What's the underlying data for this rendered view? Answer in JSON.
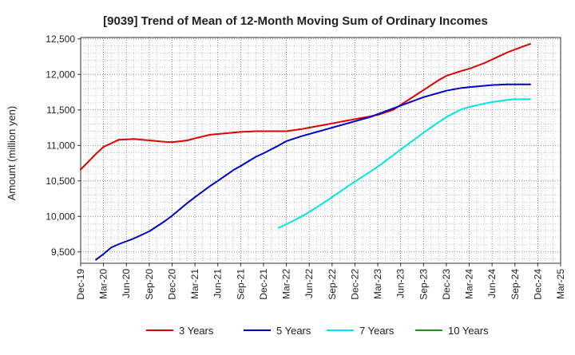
{
  "chart_data": {
    "type": "line",
    "title": "[9039]  Trend of Mean of 12-Month Moving Sum of Ordinary Incomes",
    "ylabel": "Amount (million yen)",
    "xlabel": "",
    "ylim": [
      9340,
      12520
    ],
    "yticks": [
      9500,
      10000,
      10500,
      11000,
      11500,
      12000,
      12500
    ],
    "ytick_labels": [
      "9,500",
      "10,000",
      "10,500",
      "11,000",
      "11,500",
      "12,000",
      "12,500"
    ],
    "x_tick_labels": [
      "Dec-19",
      "Mar-20",
      "Jun-20",
      "Sep-20",
      "Dec-20",
      "Mar-21",
      "Jun-21",
      "Sep-21",
      "Dec-21",
      "Mar-22",
      "Jun-22",
      "Sep-22",
      "Dec-22",
      "Mar-23",
      "Jun-23",
      "Sep-23",
      "Dec-23",
      "Mar-24",
      "Jun-24",
      "Sep-24",
      "Dec-24",
      "Mar-25"
    ],
    "x_unit": "quarter index from Dec-19 (0) to Mar-25 (21)",
    "grid": true,
    "legend_position": "bottom",
    "series": [
      {
        "name": "3 Years",
        "color": "#dd0000",
        "points": [
          [
            0,
            10660
          ],
          [
            0.67,
            10880
          ],
          [
            1,
            10980
          ],
          [
            1.67,
            11080
          ],
          [
            2.33,
            11090
          ],
          [
            3,
            11070
          ],
          [
            3.67,
            11050
          ],
          [
            4,
            11045
          ],
          [
            4.67,
            11070
          ],
          [
            5,
            11100
          ],
          [
            5.67,
            11150
          ],
          [
            6,
            11160
          ],
          [
            6.67,
            11180
          ],
          [
            7,
            11190
          ],
          [
            7.67,
            11200
          ],
          [
            8,
            11200
          ],
          [
            8.67,
            11200
          ],
          [
            9,
            11200
          ],
          [
            9.67,
            11230
          ],
          [
            10,
            11250
          ],
          [
            10.67,
            11290
          ],
          [
            11,
            11310
          ],
          [
            11.67,
            11350
          ],
          [
            12,
            11370
          ],
          [
            12.67,
            11410
          ],
          [
            13,
            11430
          ],
          [
            13.67,
            11500
          ],
          [
            14,
            11570
          ],
          [
            14.67,
            11710
          ],
          [
            15,
            11780
          ],
          [
            15.67,
            11920
          ],
          [
            16,
            11980
          ],
          [
            16.67,
            12050
          ],
          [
            17,
            12080
          ],
          [
            17.67,
            12160
          ],
          [
            18,
            12210
          ],
          [
            18.67,
            12310
          ],
          [
            19,
            12350
          ],
          [
            19.67,
            12430
          ]
        ]
      },
      {
        "name": "5 Years",
        "color": "#0000cc",
        "points": [
          [
            0.67,
            9390
          ],
          [
            1,
            9470
          ],
          [
            1.33,
            9560
          ],
          [
            1.67,
            9610
          ],
          [
            2.33,
            9690
          ],
          [
            3,
            9790
          ],
          [
            3.67,
            9930
          ],
          [
            4,
            10010
          ],
          [
            4.67,
            10190
          ],
          [
            5,
            10270
          ],
          [
            5.67,
            10430
          ],
          [
            6,
            10500
          ],
          [
            6.67,
            10650
          ],
          [
            7,
            10710
          ],
          [
            7.67,
            10840
          ],
          [
            8,
            10890
          ],
          [
            8.67,
            11000
          ],
          [
            9,
            11060
          ],
          [
            9.67,
            11130
          ],
          [
            10,
            11160
          ],
          [
            10.67,
            11220
          ],
          [
            11,
            11250
          ],
          [
            11.67,
            11310
          ],
          [
            12,
            11340
          ],
          [
            12.67,
            11400
          ],
          [
            13,
            11440
          ],
          [
            13.67,
            11520
          ],
          [
            14,
            11560
          ],
          [
            14.67,
            11640
          ],
          [
            15,
            11680
          ],
          [
            15.67,
            11740
          ],
          [
            16,
            11770
          ],
          [
            16.67,
            11810
          ],
          [
            17,
            11820
          ],
          [
            17.67,
            11840
          ],
          [
            18,
            11850
          ],
          [
            18.67,
            11860
          ],
          [
            19,
            11860
          ],
          [
            19.67,
            11860
          ]
        ]
      },
      {
        "name": "7 Years",
        "color": "#00e5e5",
        "points": [
          [
            8.67,
            9840
          ],
          [
            9,
            9890
          ],
          [
            9.67,
            10000
          ],
          [
            10,
            10060
          ],
          [
            10.67,
            10200
          ],
          [
            11,
            10270
          ],
          [
            11.67,
            10420
          ],
          [
            12,
            10490
          ],
          [
            12.67,
            10630
          ],
          [
            13,
            10700
          ],
          [
            13.67,
            10860
          ],
          [
            14,
            10940
          ],
          [
            14.67,
            11100
          ],
          [
            15,
            11180
          ],
          [
            15.67,
            11330
          ],
          [
            16,
            11400
          ],
          [
            16.67,
            11510
          ],
          [
            17,
            11540
          ],
          [
            17.67,
            11590
          ],
          [
            18,
            11610
          ],
          [
            18.67,
            11640
          ],
          [
            19,
            11650
          ],
          [
            19.67,
            11650
          ]
        ]
      },
      {
        "name": "10 Years",
        "color": "#228b22",
        "points": []
      }
    ]
  }
}
